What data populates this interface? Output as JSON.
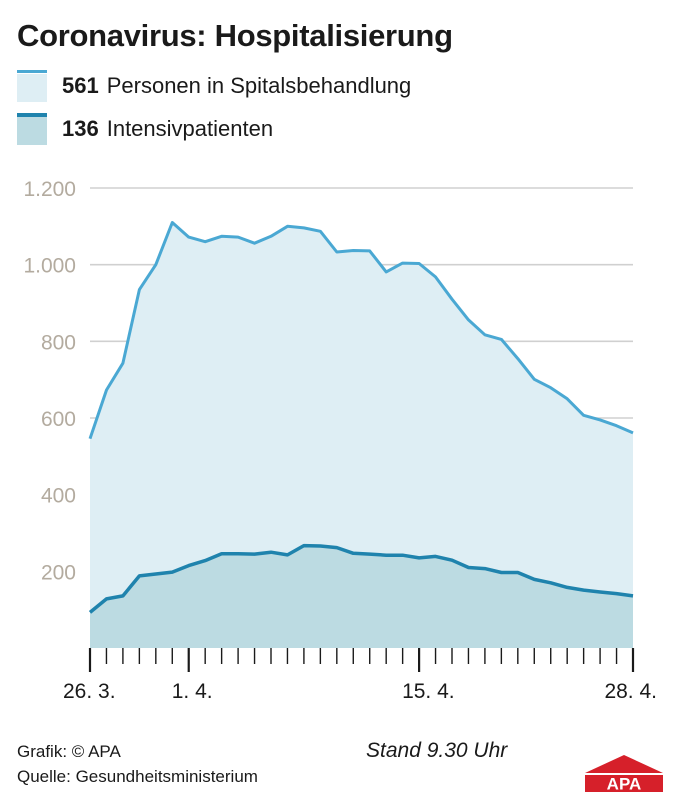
{
  "title": "Coronavirus: Hospitalisierung",
  "legend": [
    {
      "value": "561",
      "label": "Personen in Spitalsbehandlung",
      "color": "#4aa8d3",
      "fill": "#deeef4"
    },
    {
      "value": "136",
      "label": "Intensivpatienten",
      "color": "#1f83ad",
      "fill": "#bcdbe2"
    }
  ],
  "chart_data": {
    "type": "area",
    "x": [
      "26.3.",
      "27.3.",
      "28.3.",
      "29.3.",
      "30.3.",
      "31.3.",
      "1.4.",
      "2.4.",
      "3.4.",
      "4.4.",
      "5.4.",
      "6.4.",
      "7.4.",
      "8.4.",
      "9.4.",
      "10.4.",
      "11.4.",
      "12.4.",
      "13.4.",
      "14.4.",
      "15.4.",
      "16.4.",
      "17.4.",
      "18.4.",
      "19.4.",
      "20.4.",
      "21.4.",
      "22.4.",
      "23.4.",
      "24.4.",
      "25.4.",
      "26.4.",
      "27.4.",
      "28.4."
    ],
    "series": [
      {
        "name": "Personen in Spitalsbehandlung",
        "values": [
          546,
          673,
          743,
          935,
          1000,
          1110,
          1072,
          1060,
          1074,
          1072,
          1056,
          1074,
          1100,
          1096,
          1087,
          1033,
          1037,
          1036,
          981,
          1004,
          1003,
          968,
          910,
          856,
          817,
          805,
          755,
          701,
          679,
          650,
          607,
          595,
          580,
          561
        ]
      },
      {
        "name": "Intensivpatienten",
        "values": [
          93,
          128,
          136,
          188,
          193,
          198,
          215,
          228,
          246,
          246,
          245,
          250,
          243,
          267,
          266,
          262,
          247,
          245,
          242,
          242,
          235,
          239,
          229,
          210,
          207,
          197,
          197,
          179,
          170,
          158,
          151,
          146,
          142,
          136
        ]
      }
    ],
    "ylim": [
      0,
      1200
    ],
    "yticks": [
      200,
      400,
      600,
      800,
      1000,
      1200
    ],
    "ytick_labels": [
      "200",
      "400",
      "600",
      "800",
      "1.000",
      "1.200"
    ],
    "xtick_labels": [
      {
        "index": 0,
        "label": "26. 3."
      },
      {
        "index": 6,
        "label": "1. 4."
      },
      {
        "index": 20,
        "label": "15. 4."
      },
      {
        "index": 33,
        "label": "28. 4."
      }
    ],
    "grid": true
  },
  "footer": {
    "credit": "Grafik: © APA",
    "source": "Quelle: Gesundheitsministerium",
    "stand": "Stand 9.30 Uhr",
    "logo": "APA"
  }
}
